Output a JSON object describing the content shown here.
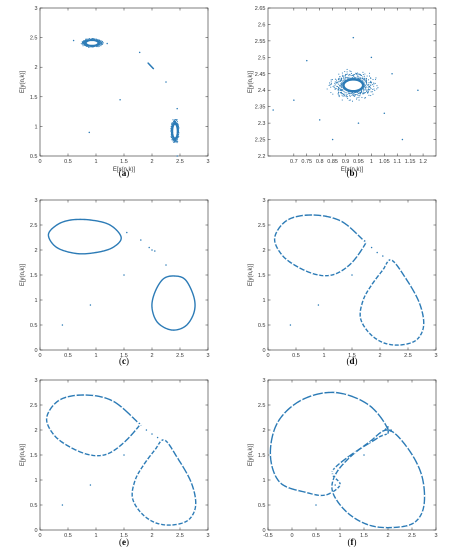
{
  "chart_data": [
    {
      "panel": "a",
      "caption": "(a)",
      "type": "scatter",
      "xlabel": "E[x(n,k)]",
      "ylabel": "E[y(n,k)]",
      "xlim": [
        0,
        3
      ],
      "ylim": [
        0.5,
        3
      ],
      "xticks": [
        "0",
        "0.5",
        "1",
        "1.5",
        "2",
        "2.5",
        "3"
      ],
      "yticks": [
        "0.5",
        "1",
        "1.5",
        "2",
        "2.5",
        "3"
      ],
      "series": [
        {
          "kind": "spiral",
          "cx": 0.93,
          "cy": 2.41,
          "rx": 0.11,
          "ry": 0.045,
          "n": 40,
          "spread": 0.12
        },
        {
          "kind": "spiral",
          "cx": 2.41,
          "cy": 0.92,
          "rx": 0.045,
          "ry": 0.12,
          "n": 40,
          "spread": 0.12
        },
        {
          "kind": "cluster",
          "cx": 1.98,
          "cy": 2.02,
          "rx": 0.05,
          "ry": 0.05,
          "n": 5
        },
        {
          "kind": "points",
          "points": [
            [
              0.88,
              0.9
            ],
            [
              1.43,
              1.45
            ],
            [
              1.78,
              2.25
            ],
            [
              2.25,
              1.75
            ],
            [
              0.6,
              2.45
            ],
            [
              1.2,
              2.4
            ],
            [
              2.45,
              0.5
            ],
            [
              2.45,
              1.3
            ]
          ]
        }
      ]
    },
    {
      "panel": "b",
      "caption": "(b)",
      "type": "scatter",
      "xlabel": "E[x(n,k)]",
      "ylabel": "E[y(n,k)]",
      "xlim": [
        0.6,
        1.25
      ],
      "ylim": [
        2.2,
        2.65
      ],
      "xticks": [
        "0.7",
        "0.75",
        "0.8",
        "0.85",
        "0.9",
        "0.95",
        "1",
        "1.05",
        "1.1",
        "1.15",
        "1.2"
      ],
      "yticks": [
        "2.2",
        "2.25",
        "2.3",
        "2.35",
        "2.4",
        "2.45",
        "2.5",
        "2.55",
        "2.6",
        "2.65"
      ],
      "series": [
        {
          "kind": "spiral",
          "cx": 0.93,
          "cy": 2.415,
          "rx": 0.038,
          "ry": 0.018,
          "n": 48,
          "spread": 0.14,
          "dense": true
        },
        {
          "kind": "points",
          "points": [
            [
              0.62,
              2.34
            ],
            [
              0.75,
              2.49
            ],
            [
              0.85,
              2.25
            ],
            [
              0.93,
              2.56
            ],
            [
              1.05,
              2.33
            ],
            [
              1.12,
              2.25
            ],
            [
              1.18,
              2.4
            ],
            [
              0.8,
              2.31
            ],
            [
              1.0,
              2.5
            ],
            [
              1.08,
              2.45
            ],
            [
              0.7,
              2.37
            ],
            [
              0.95,
              2.3
            ]
          ]
        }
      ]
    },
    {
      "panel": "c",
      "caption": "(c)",
      "type": "scatter",
      "xlabel": "",
      "ylabel": "E[y(n,k)]",
      "xlim": [
        0,
        3
      ],
      "ylim": [
        0,
        3
      ],
      "xticks": [
        "0",
        "0.5",
        "1",
        "1.5",
        "2",
        "2.5",
        "3"
      ],
      "yticks": [
        "0",
        "0.5",
        "1",
        "1.5",
        "2",
        "2.5",
        "3"
      ],
      "series": [
        {
          "kind": "loop",
          "x": [
            0.15,
            0.3,
            0.55,
            0.9,
            1.25,
            1.45,
            1.3,
            1.0,
            0.65,
            0.3,
            0.15
          ],
          "y": [
            2.3,
            2.5,
            2.6,
            2.6,
            2.5,
            2.25,
            2.05,
            1.95,
            1.93,
            2.05,
            2.3
          ]
        },
        {
          "kind": "loop",
          "x": [
            2.4,
            2.6,
            2.75,
            2.75,
            2.6,
            2.35,
            2.1,
            2.0,
            2.05,
            2.2,
            2.4
          ],
          "y": [
            1.48,
            1.4,
            1.05,
            0.75,
            0.48,
            0.4,
            0.55,
            0.85,
            1.15,
            1.42,
            1.48
          ]
        },
        {
          "kind": "points",
          "points": [
            [
              1.55,
              2.35
            ],
            [
              1.8,
              2.2
            ],
            [
              1.95,
              2.05
            ],
            [
              2.0,
              2.0
            ],
            [
              2.05,
              1.98
            ],
            [
              2.25,
              1.7
            ],
            [
              1.5,
              1.5
            ],
            [
              0.9,
              0.9
            ],
            [
              0.4,
              0.5
            ]
          ]
        }
      ]
    },
    {
      "panel": "d",
      "caption": "(d)",
      "type": "scatter",
      "xlabel": "",
      "ylabel": "E[y(n,k)]",
      "xlim": [
        0,
        3
      ],
      "ylim": [
        0,
        3
      ],
      "xticks": [
        "0",
        "0.5",
        "1",
        "1.5",
        "2",
        "2.5",
        "3"
      ],
      "yticks": [
        "0",
        "0.5",
        "1",
        "1.5",
        "2",
        "2.5",
        "3"
      ],
      "series": [
        {
          "kind": "loop",
          "x": [
            1.7,
            1.3,
            0.8,
            0.35,
            0.12,
            0.25,
            0.55,
            0.9,
            1.2,
            1.5,
            1.75,
            1.7
          ],
          "y": [
            2.2,
            2.58,
            2.7,
            2.6,
            2.25,
            1.9,
            1.65,
            1.5,
            1.52,
            1.75,
            2.15,
            2.2
          ]
        },
        {
          "kind": "loop",
          "x": [
            2.2,
            2.45,
            2.7,
            2.78,
            2.65,
            2.35,
            2.05,
            1.8,
            1.65,
            1.7,
            1.85,
            2.05,
            2.2
          ],
          "y": [
            1.8,
            1.45,
            0.95,
            0.5,
            0.2,
            0.1,
            0.15,
            0.35,
            0.65,
            1.0,
            1.3,
            1.6,
            1.8
          ]
        },
        {
          "kind": "points",
          "points": [
            [
              1.75,
              2.15
            ],
            [
              1.85,
              2.05
            ],
            [
              1.95,
              1.95
            ],
            [
              2.05,
              1.88
            ],
            [
              0.4,
              0.5
            ],
            [
              0.9,
              0.9
            ],
            [
              1.5,
              1.5
            ]
          ]
        }
      ]
    },
    {
      "panel": "e",
      "caption": "(e)",
      "type": "scatter",
      "xlabel": "",
      "ylabel": "E[y(n,k)]",
      "xlim": [
        0,
        3
      ],
      "ylim": [
        0,
        3
      ],
      "xticks": [
        "0",
        "0.5",
        "1",
        "1.5",
        "2",
        "2.5",
        "3"
      ],
      "yticks": [
        "0",
        "0.5",
        "1",
        "1.5",
        "2",
        "2.5",
        "3"
      ],
      "series": [
        {
          "kind": "loop",
          "x": [
            1.75,
            1.3,
            0.8,
            0.35,
            0.12,
            0.25,
            0.55,
            0.9,
            1.2,
            1.5,
            1.78,
            1.75
          ],
          "y": [
            2.15,
            2.58,
            2.7,
            2.6,
            2.25,
            1.9,
            1.65,
            1.5,
            1.52,
            1.75,
            2.1,
            2.15
          ]
        },
        {
          "kind": "loop",
          "x": [
            2.22,
            2.45,
            2.7,
            2.78,
            2.65,
            2.35,
            2.05,
            1.8,
            1.65,
            1.7,
            1.85,
            2.05,
            2.22
          ],
          "y": [
            1.8,
            1.45,
            0.95,
            0.5,
            0.2,
            0.1,
            0.15,
            0.35,
            0.65,
            1.0,
            1.3,
            1.6,
            1.8
          ]
        },
        {
          "kind": "points",
          "points": [
            [
              1.8,
              2.1
            ],
            [
              1.9,
              2.0
            ],
            [
              2.0,
              1.92
            ],
            [
              2.1,
              1.85
            ],
            [
              0.4,
              0.5
            ],
            [
              0.9,
              0.9
            ],
            [
              1.5,
              1.5
            ]
          ]
        }
      ]
    },
    {
      "panel": "f",
      "caption": "(f)",
      "type": "scatter",
      "xlabel": "",
      "ylabel": "E[y(n,k)]",
      "xlim": [
        -0.5,
        3
      ],
      "ylim": [
        0,
        3
      ],
      "xticks": [
        "-0.5",
        "0",
        "0.5",
        "1",
        "1.5",
        "2",
        "2.5",
        "3"
      ],
      "yticks": [
        "0",
        "0.5",
        "1",
        "1.5",
        "2",
        "2.5",
        "3"
      ],
      "series": [
        {
          "kind": "loop",
          "x": [
            2.0,
            1.6,
            0.9,
            0.2,
            -0.3,
            -0.45,
            -0.25,
            0.3,
            0.7,
            1.0,
            0.85,
            0.9,
            1.3,
            1.8,
            2.0
          ],
          "y": [
            2.0,
            2.5,
            2.75,
            2.6,
            2.15,
            1.5,
            0.95,
            0.75,
            0.7,
            0.9,
            1.1,
            1.25,
            1.55,
            1.85,
            2.0
          ]
        },
        {
          "kind": "loop",
          "x": [
            2.0,
            2.4,
            2.7,
            2.75,
            2.55,
            2.1,
            1.6,
            1.15,
            0.85,
            0.9,
            1.2,
            1.6,
            2.0
          ],
          "y": [
            2.0,
            1.65,
            1.1,
            0.5,
            0.15,
            0.05,
            0.1,
            0.35,
            0.75,
            1.1,
            1.45,
            1.75,
            2.0
          ]
        },
        {
          "kind": "points",
          "points": [
            [
              2.0,
              2.0
            ],
            [
              1.95,
              2.02
            ],
            [
              2.05,
              1.98
            ],
            [
              0.5,
              0.5
            ],
            [
              0.9,
              0.9
            ],
            [
              1.5,
              1.5
            ]
          ]
        }
      ]
    }
  ]
}
